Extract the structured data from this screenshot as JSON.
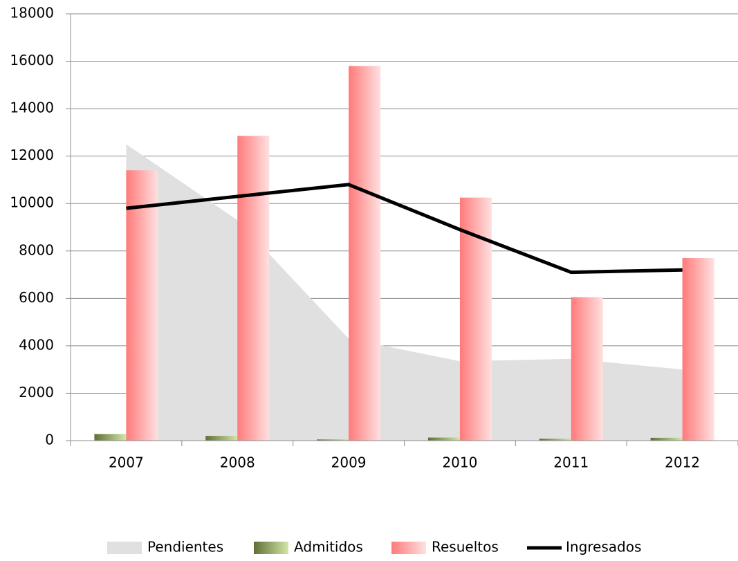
{
  "chart_data": {
    "type": "combo",
    "categories": [
      "2007",
      "2008",
      "2009",
      "2010",
      "2011",
      "2012"
    ],
    "series": [
      {
        "name": "Pendientes",
        "type": "area",
        "color": "#e0e0e0",
        "values": [
          12500,
          9300,
          4300,
          3350,
          3450,
          3000
        ]
      },
      {
        "name": "Admitidos",
        "type": "bar",
        "color": "#8ba05a",
        "values": [
          280,
          200,
          50,
          130,
          80,
          120
        ]
      },
      {
        "name": "Resueltos",
        "type": "bar",
        "color": "#ff8080",
        "values": [
          11400,
          12850,
          15800,
          10250,
          6050,
          7700
        ]
      },
      {
        "name": "Ingresados",
        "type": "line",
        "color": "#000000",
        "values": [
          9800,
          10300,
          10800,
          8900,
          7100,
          7200
        ]
      }
    ],
    "ylim": [
      0,
      18000
    ],
    "yticks": [
      0,
      2000,
      4000,
      6000,
      8000,
      10000,
      12000,
      14000,
      16000,
      18000
    ],
    "grid": true,
    "legend": "bottom"
  }
}
